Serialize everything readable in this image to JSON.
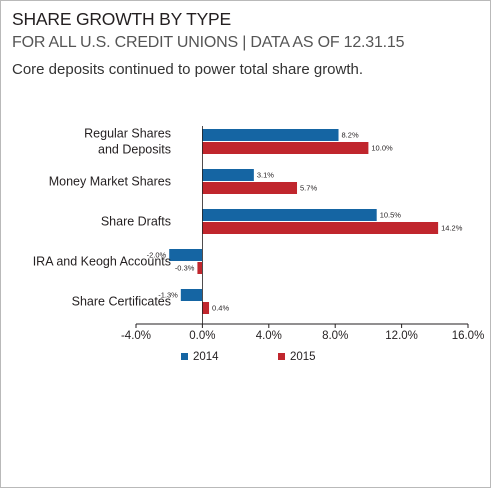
{
  "title": "SHARE GROWTH BY TYPE",
  "subtitle": "FOR ALL U.S. CREDIT UNIONS | DATA AS OF 12.31.15",
  "caption": "Core deposits continued to power total share growth.",
  "colors": {
    "2014": "#1565a3",
    "2015": "#c0262d"
  },
  "chart_data": {
    "type": "bar",
    "orientation": "horizontal",
    "title": "SHARE GROWTH BY TYPE",
    "categories": [
      [
        "Regular Shares",
        "and Deposits"
      ],
      [
        "Money Market Shares"
      ],
      [
        "Share Drafts"
      ],
      [
        "IRA and Keogh Accounts"
      ],
      [
        "Share Certificates"
      ]
    ],
    "series": [
      {
        "name": "2014",
        "values": [
          8.2,
          3.1,
          10.5,
          -2.0,
          -1.3
        ],
        "labels": [
          "8.2%",
          "3.1%",
          "10.5%",
          "-2.0%",
          "-1.3%"
        ]
      },
      {
        "name": "2015",
        "values": [
          10.0,
          5.7,
          14.2,
          -0.3,
          0.4
        ],
        "labels": [
          "10.0%",
          "5.7%",
          "14.2%",
          "-0.3%",
          "0.4%"
        ]
      }
    ],
    "xlim": [
      -4,
      16
    ],
    "xticks": [
      -4,
      0,
      4,
      8,
      12,
      16
    ],
    "xtick_labels": [
      "-4.0%",
      "0.0%",
      "4.0%",
      "8.0%",
      "12.0%",
      "16.0%"
    ],
    "grid": false,
    "legend": "bottom"
  }
}
